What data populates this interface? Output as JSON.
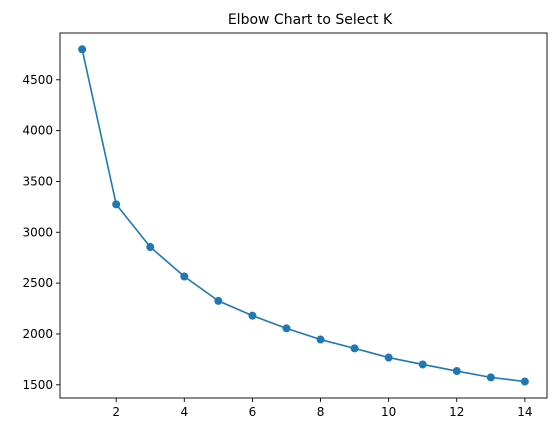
{
  "chart_data": {
    "type": "line",
    "title": "Elbow Chart to Select K",
    "xlabel": "",
    "ylabel": "",
    "x": [
      1,
      2,
      3,
      4,
      5,
      6,
      7,
      8,
      9,
      10,
      11,
      12,
      13,
      14
    ],
    "series": [
      {
        "values": [
          4800,
          3275,
          2855,
          2565,
          2325,
          2180,
          2055,
          1945,
          1858,
          1768,
          1700,
          1635,
          1573,
          1532
        ],
        "color": "#1f77b4",
        "marker": "circle"
      }
    ],
    "xlim": [
      0.35,
      14.65
    ],
    "ylim": [
      1370,
      4960
    ],
    "xticks": [
      2,
      4,
      6,
      8,
      10,
      12,
      14
    ],
    "yticks": [
      1500,
      2000,
      2500,
      3000,
      3500,
      4000,
      4500
    ],
    "grid": false,
    "legend": "none"
  }
}
